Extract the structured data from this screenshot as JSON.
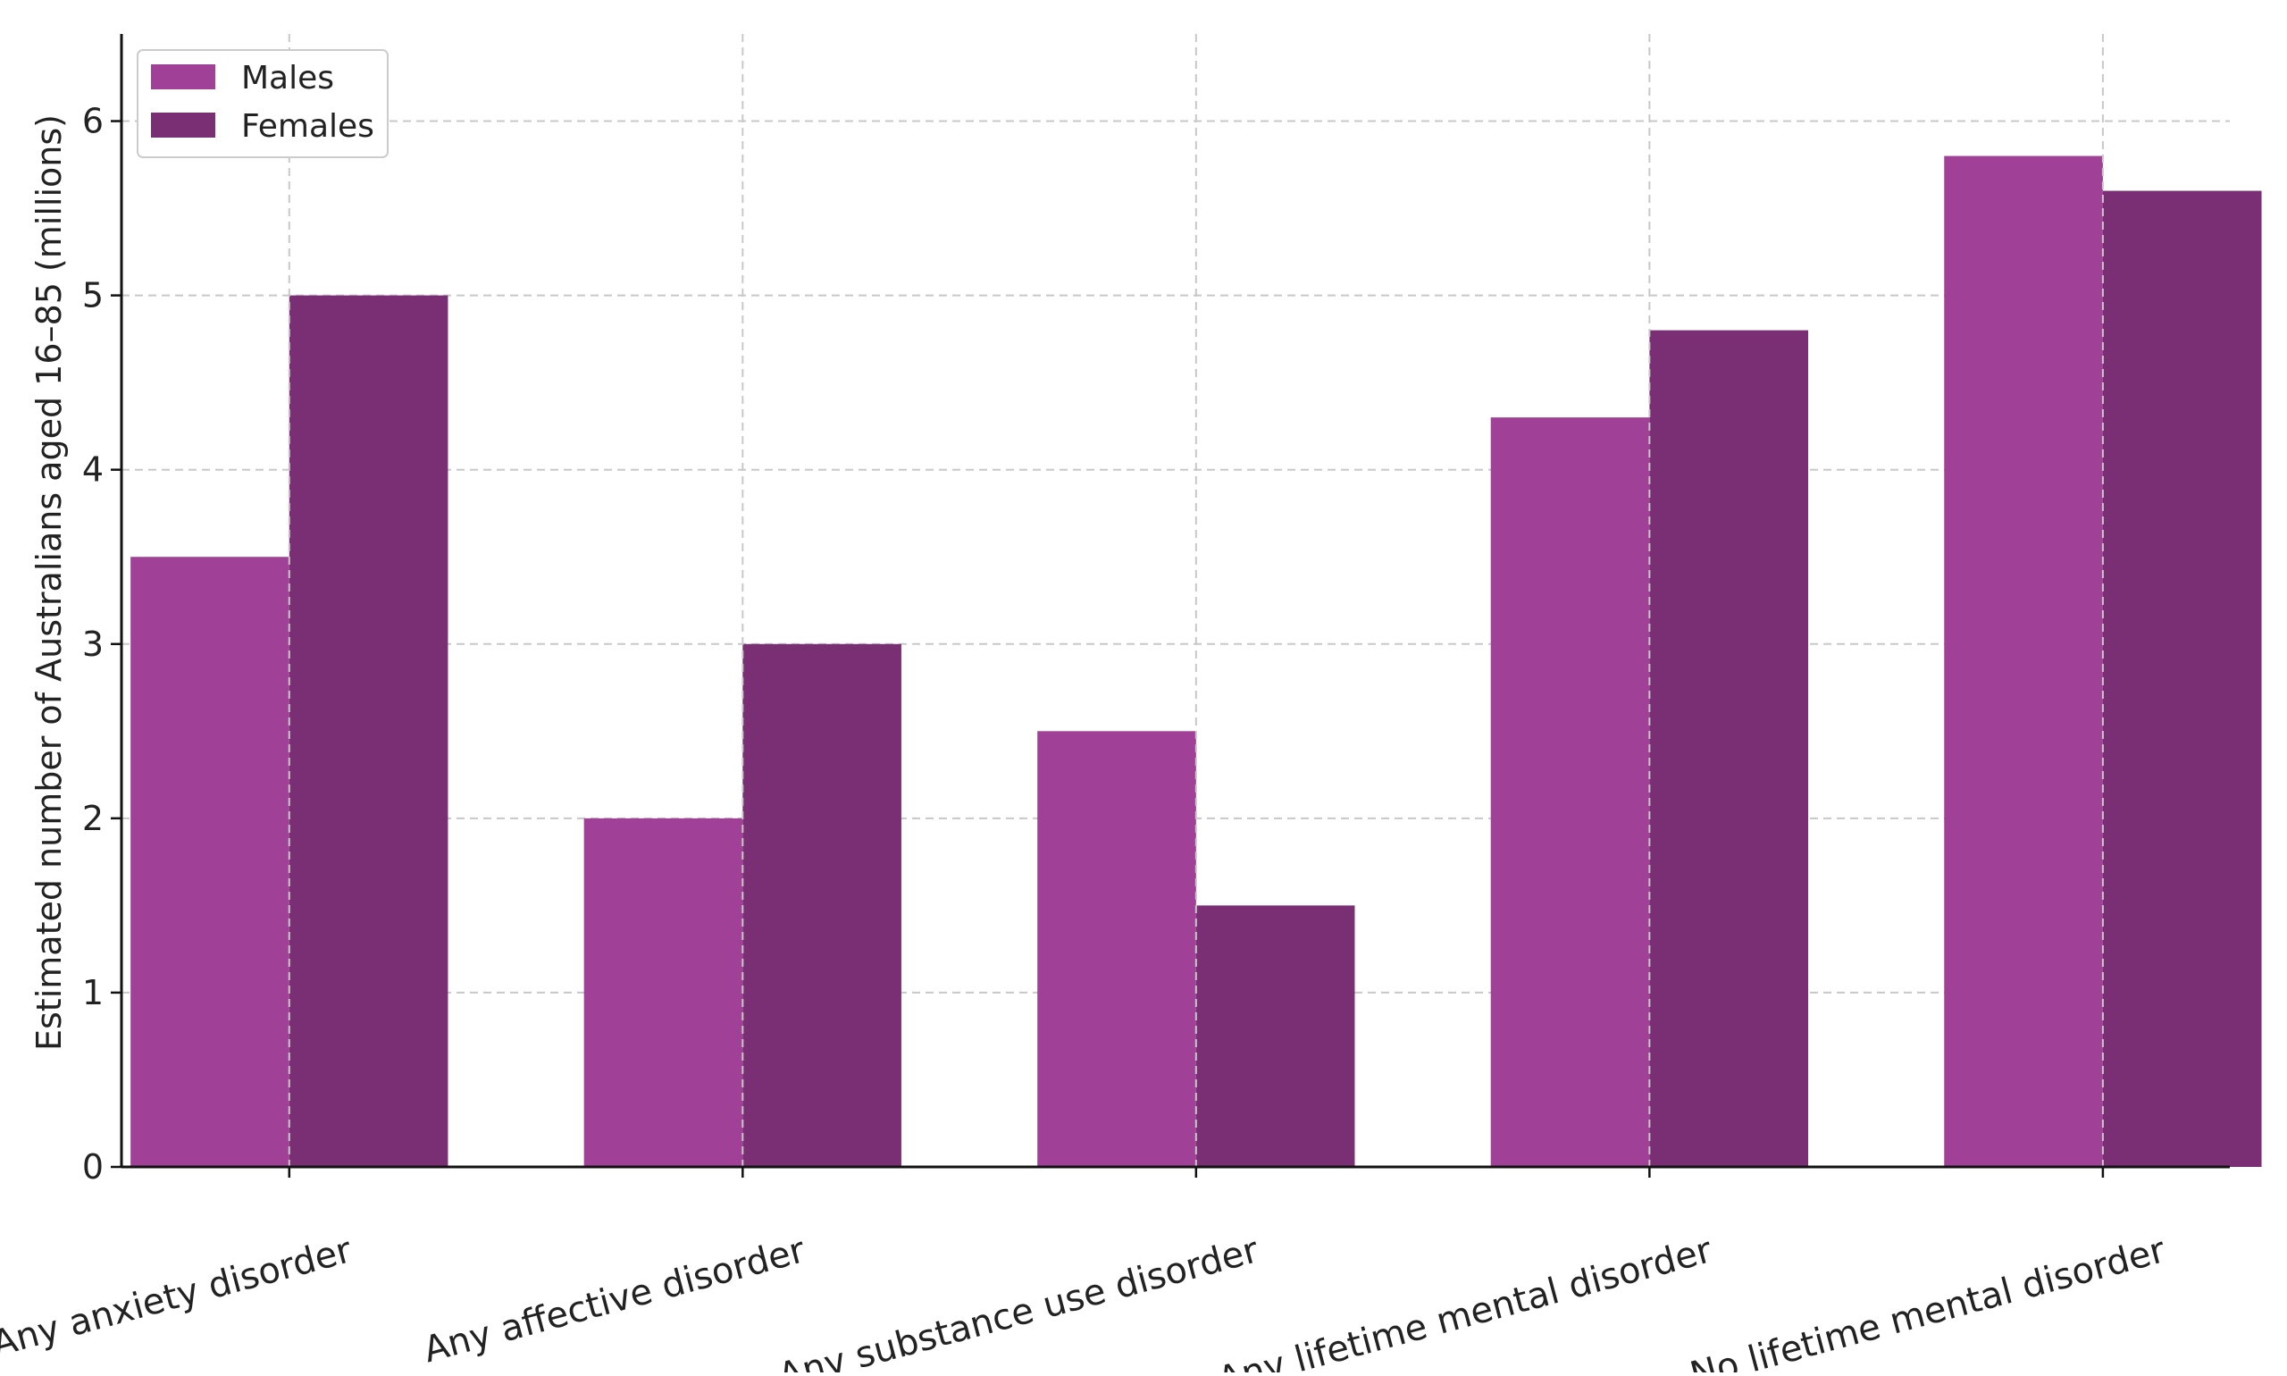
{
  "chart_data": {
    "type": "bar",
    "title": "",
    "xlabel": "",
    "ylabel": "Estimated number of Australians aged 16–85 (millions)",
    "categories": [
      "Any anxiety disorder",
      "Any affective disorder",
      "Any substance use disorder",
      "Any lifetime mental disorder",
      "No lifetime mental disorder"
    ],
    "series": [
      {
        "name": "Males",
        "color": "#a04096",
        "values": [
          3.5,
          2.0,
          2.5,
          4.3,
          5.8
        ]
      },
      {
        "name": "Females",
        "color": "#7a2f74",
        "values": [
          5.0,
          3.0,
          1.5,
          4.8,
          5.6
        ]
      }
    ],
    "ylim": [
      0,
      6.5
    ],
    "yticks": [
      "0",
      "1",
      "2",
      "3",
      "4",
      "5",
      "6"
    ],
    "grid": true,
    "legend_position": "top-left"
  }
}
